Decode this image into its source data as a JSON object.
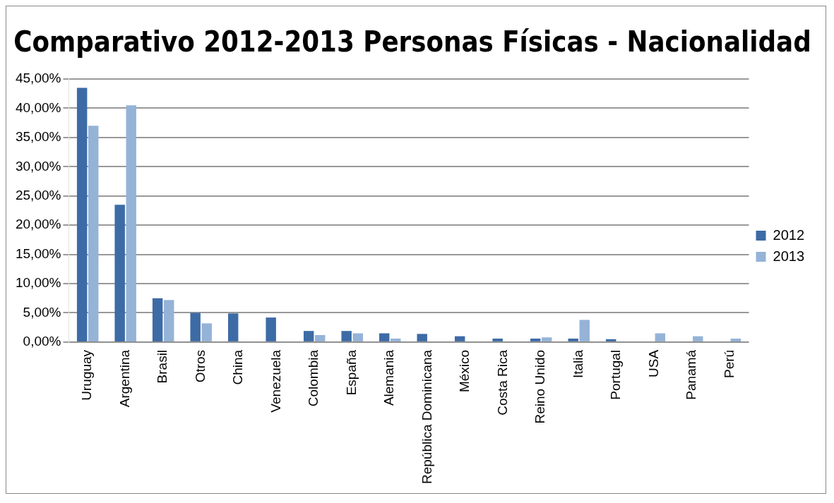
{
  "chart_data": {
    "type": "bar",
    "title": "Comparativo 2012-2013 Personas Físicas - Nacionalidad",
    "categories": [
      "Uruguay",
      "Argentina",
      "Brasil",
      "Otros",
      "China",
      "Venezuela",
      "Colombia",
      "España",
      "Alemania",
      "República Dominicana",
      "México",
      "Costa Rica",
      "Reino Unido",
      "Italia",
      "Portugal",
      "USA",
      "Panamá",
      "Perú"
    ],
    "series": [
      {
        "name": "2012",
        "color": "#3d6ba6",
        "values": [
          43.5,
          23.5,
          7.5,
          5,
          4.9,
          4.2,
          1.9,
          1.9,
          1.5,
          1.4,
          1,
          0.6,
          0.6,
          0.6,
          0.5,
          null,
          null,
          null
        ]
      },
      {
        "name": "2013",
        "color": "#95b3d7",
        "values": [
          37,
          40.5,
          7.2,
          3.2,
          null,
          null,
          1.2,
          1.5,
          0.6,
          null,
          null,
          null,
          0.8,
          3.8,
          null,
          1.5,
          1,
          0.6
        ]
      }
    ],
    "ylim": [
      0,
      45
    ],
    "yticks": [
      {
        "value": 0,
        "label": "0,00%"
      },
      {
        "value": 5,
        "label": "5,00%"
      },
      {
        "value": 10,
        "label": "10,00%"
      },
      {
        "value": 15,
        "label": "15,00%"
      },
      {
        "value": 20,
        "label": "20,00%"
      },
      {
        "value": 25,
        "label": "25,00%"
      },
      {
        "value": 30,
        "label": "30,00%"
      },
      {
        "value": 35,
        "label": "35,00%"
      },
      {
        "value": 40,
        "label": "40,00%"
      },
      {
        "value": 45,
        "label": "45,00%"
      }
    ],
    "grid": "y",
    "legend": "right"
  }
}
